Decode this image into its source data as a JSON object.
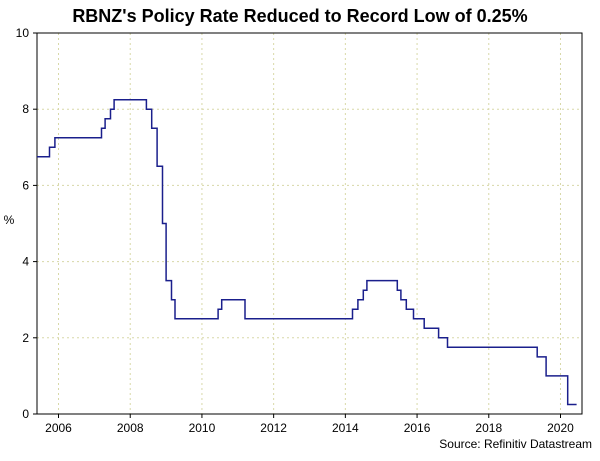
{
  "chart_data": {
    "type": "line",
    "title": "RBNZ's Policy Rate Reduced to Record Low of 0.25%",
    "xlabel": "",
    "ylabel": "%",
    "source": "Source: Refinitiv Datastream",
    "xlim": [
      2005.4,
      2020.6
    ],
    "ylim": [
      0,
      10
    ],
    "x_ticks": [
      2006,
      2008,
      2010,
      2012,
      2014,
      2016,
      2018,
      2020
    ],
    "y_ticks": [
      0,
      2,
      4,
      6,
      8,
      10
    ],
    "grid": true,
    "line_color": "#1a1f8c",
    "series": [
      {
        "step": true,
        "points": [
          [
            2005.4,
            6.75
          ],
          [
            2005.75,
            7.0
          ],
          [
            2005.9,
            7.25
          ],
          [
            2007.2,
            7.5
          ],
          [
            2007.3,
            7.75
          ],
          [
            2007.45,
            8.0
          ],
          [
            2007.55,
            8.25
          ],
          [
            2008.45,
            8.0
          ],
          [
            2008.6,
            7.5
          ],
          [
            2008.75,
            6.5
          ],
          [
            2008.9,
            5.0
          ],
          [
            2009.0,
            3.5
          ],
          [
            2009.15,
            3.0
          ],
          [
            2009.25,
            2.5
          ],
          [
            2010.45,
            2.75
          ],
          [
            2010.55,
            3.0
          ],
          [
            2011.2,
            2.5
          ],
          [
            2014.2,
            2.75
          ],
          [
            2014.35,
            3.0
          ],
          [
            2014.5,
            3.25
          ],
          [
            2014.6,
            3.5
          ],
          [
            2015.45,
            3.25
          ],
          [
            2015.55,
            3.0
          ],
          [
            2015.7,
            2.75
          ],
          [
            2015.9,
            2.5
          ],
          [
            2016.2,
            2.25
          ],
          [
            2016.6,
            2.0
          ],
          [
            2016.85,
            1.75
          ],
          [
            2019.35,
            1.5
          ],
          [
            2019.6,
            1.0
          ],
          [
            2020.2,
            0.25
          ],
          [
            2020.45,
            0.25
          ]
        ]
      }
    ]
  }
}
